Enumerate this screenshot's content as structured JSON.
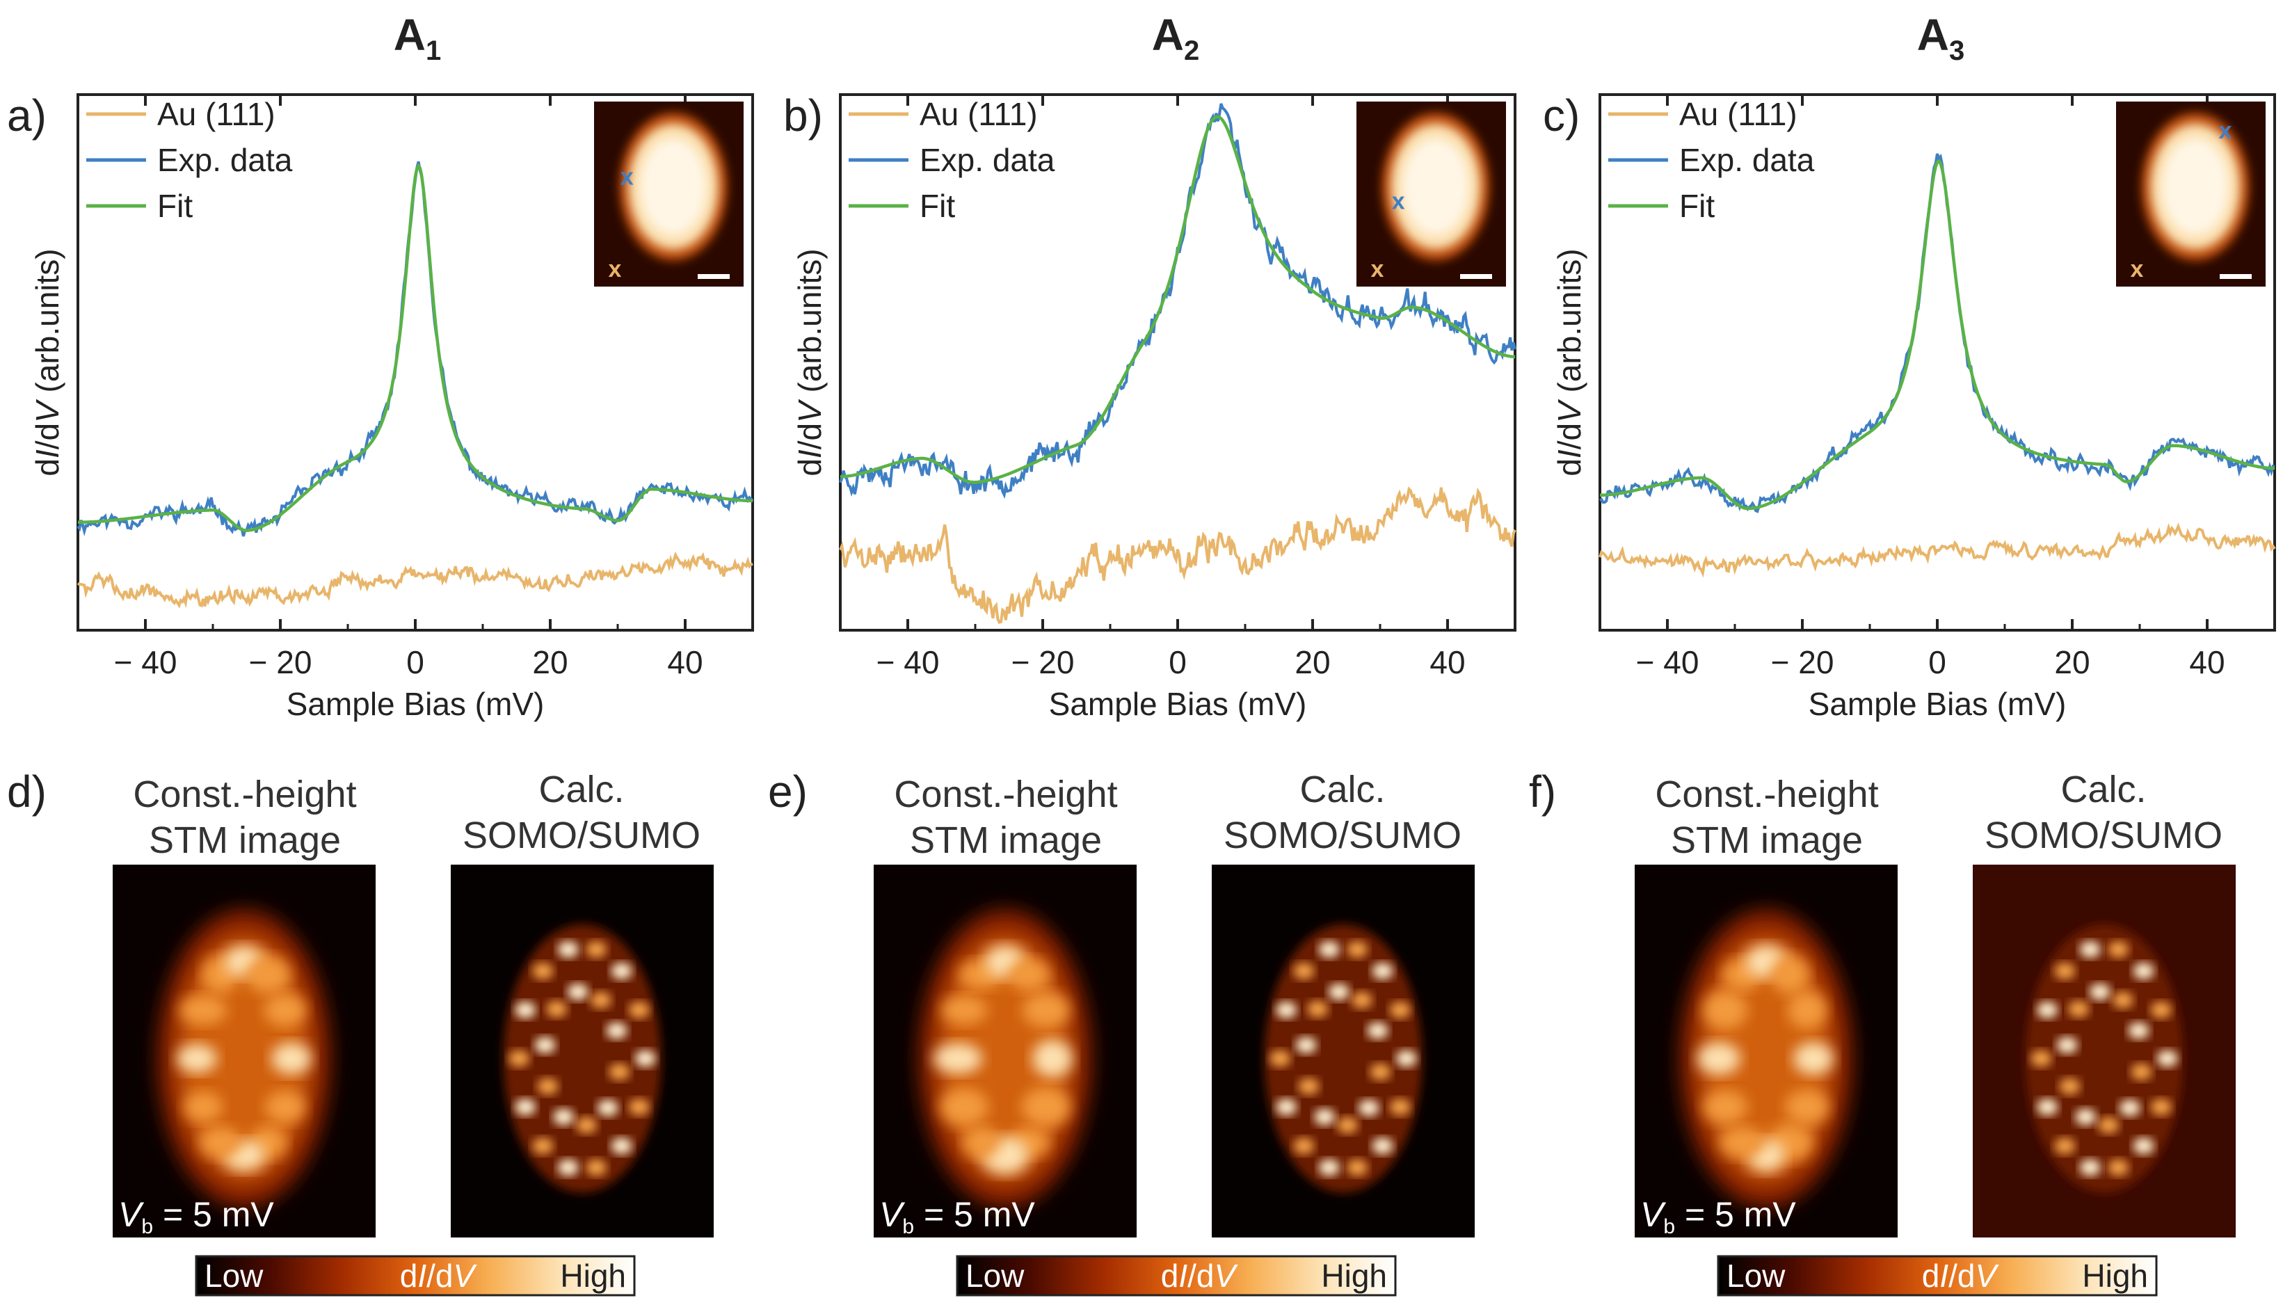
{
  "colors": {
    "au": "#e8b56a",
    "exp": "#3f7fc4",
    "fit": "#5ab246",
    "cmap": [
      "#000000",
      "#4a0a00",
      "#a32c00",
      "#e06410",
      "#f7ae52",
      "#fde3b6",
      "#ffffff"
    ]
  },
  "colorbar": {
    "low": "Low",
    "high": "High",
    "label": "dI/dV"
  },
  "chart_data": [
    {
      "type": "line",
      "panel": "a)",
      "title": "A1",
      "title_main": "A",
      "title_sub": "1",
      "xlabel": "Sample Bias (mV)",
      "ylabel": "dI/dV (arb.units)",
      "ylabel_parts": [
        "d",
        "I",
        "/d",
        "V",
        " (arb.units)"
      ],
      "xlim": [
        -50,
        50
      ],
      "ylim": [
        0,
        1
      ],
      "xticks": [
        -40,
        -20,
        0,
        20,
        40
      ],
      "xtick_labels": [
        "− 40",
        "− 20",
        "0",
        "20",
        "40"
      ],
      "legend": [
        "Au (111)",
        "Exp. data",
        "Fit"
      ],
      "series_params": {
        "fit": {
          "baseline": [
            [
              -50,
              0.2
            ],
            [
              -30,
              0.22
            ],
            [
              -25,
              0.18
            ],
            [
              -10,
              0.28
            ],
            [
              25,
              0.22
            ],
            [
              30,
              0.2
            ],
            [
              35,
              0.26
            ],
            [
              50,
              0.24
            ]
          ],
          "peak_center": 0.5,
          "peak_width": 2.6,
          "peak_height": 0.6,
          "noise": 0.0
        },
        "exp": {
          "noise": 0.012,
          "seed": 11
        },
        "au": {
          "base": [
            [
              -50,
              0.09
            ],
            [
              -30,
              0.06
            ],
            [
              -20,
              0.07
            ],
            [
              0,
              0.1
            ],
            [
              20,
              0.09
            ],
            [
              40,
              0.13
            ],
            [
              50,
              0.11
            ]
          ],
          "noise": 0.012,
          "seed": 5
        }
      },
      "inset": {
        "marker_exp": "x",
        "marker_au": "x"
      },
      "map_label_left": [
        "Const.-height",
        "STM image"
      ],
      "map_label_right": [
        "Calc.",
        "SOMO/SUMO"
      ],
      "map_panel": "d)",
      "vb_label": [
        "V",
        "b",
        " = 5 mV"
      ]
    },
    {
      "type": "line",
      "panel": "b)",
      "title": "A2",
      "title_main": "A",
      "title_sub": "2",
      "xlabel": "Sample Bias (mV)",
      "ylabel": "dI/dV (arb.units)",
      "ylabel_parts": [
        "d",
        "I",
        "/d",
        "V",
        " (arb.units)"
      ],
      "xlim": [
        -50,
        50
      ],
      "ylim": [
        0,
        1
      ],
      "xticks": [
        -40,
        -20,
        0,
        20,
        40
      ],
      "xtick_labels": [
        "− 40",
        "− 20",
        "0",
        "20",
        "40"
      ],
      "legend": [
        "Au (111)",
        "Exp. data",
        "Fit"
      ],
      "series_params": {
        "fit": {
          "baseline": [
            [
              -50,
              0.28
            ],
            [
              -38,
              0.31
            ],
            [
              -30,
              0.26
            ],
            [
              -15,
              0.3
            ],
            [
              -5,
              0.4
            ],
            [
              20,
              0.55
            ],
            [
              30,
              0.55
            ],
            [
              35,
              0.58
            ],
            [
              50,
              0.5
            ]
          ],
          "peak_center": 5.5,
          "peak_width": 6.5,
          "peak_height": 0.5,
          "noise": 0.0
        },
        "exp": {
          "noise": 0.02,
          "seed": 23
        },
        "au": {
          "base": [
            [
              -50,
              0.15
            ],
            [
              -35,
              0.14
            ],
            [
              -30,
              0.05
            ],
            [
              -20,
              0.06
            ],
            [
              -10,
              0.14
            ],
            [
              0,
              0.15
            ],
            [
              10,
              0.13
            ],
            [
              20,
              0.18
            ],
            [
              37,
              0.24
            ],
            [
              50,
              0.18
            ]
          ],
          "noise": 0.025,
          "seed": 7
        }
      },
      "inset": {
        "marker_exp": "x",
        "marker_au": "x"
      },
      "map_label_left": [
        "Const.-height",
        "STM image"
      ],
      "map_label_right": [
        "Calc.",
        "SOMO/SUMO"
      ],
      "map_panel": "e)",
      "vb_label": [
        "V",
        "b",
        " = 5 mV"
      ]
    },
    {
      "type": "line",
      "panel": "c)",
      "title": "A3",
      "title_main": "A",
      "title_sub": "3",
      "xlabel": "Sample Bias (mV)",
      "ylabel": "dI/dV (arb.units)",
      "ylabel_parts": [
        "d",
        "I",
        "/d",
        "V",
        " (arb.units)"
      ],
      "xlim": [
        -50,
        50
      ],
      "ylim": [
        0,
        1
      ],
      "xticks": [
        -40,
        -20,
        0,
        20,
        40
      ],
      "xtick_labels": [
        "− 40",
        "− 20",
        "0",
        "20",
        "40"
      ],
      "legend": [
        "Au (111)",
        "Exp. data",
        "Fit"
      ],
      "series_params": {
        "fit": {
          "baseline": [
            [
              -50,
              0.25
            ],
            [
              -35,
              0.28
            ],
            [
              -28,
              0.22
            ],
            [
              -10,
              0.32
            ],
            [
              25,
              0.3
            ],
            [
              28,
              0.27
            ],
            [
              35,
              0.34
            ],
            [
              50,
              0.3
            ]
          ],
          "peak_center": 0.2,
          "peak_width": 3.2,
          "peak_height": 0.56,
          "noise": 0.0
        },
        "exp": {
          "noise": 0.012,
          "seed": 31
        },
        "au": {
          "base": [
            [
              -50,
              0.14
            ],
            [
              -30,
              0.12
            ],
            [
              -20,
              0.13
            ],
            [
              0,
              0.15
            ],
            [
              20,
              0.15
            ],
            [
              35,
              0.18
            ],
            [
              50,
              0.16
            ]
          ],
          "noise": 0.01,
          "seed": 3
        }
      },
      "inset": {
        "marker_exp": "x",
        "marker_au": "x"
      },
      "map_label_left": [
        "Const.-height",
        "STM image"
      ],
      "map_label_right": [
        "Calc.",
        "SOMO/SUMO"
      ],
      "map_panel": "f)",
      "vb_label": [
        "V",
        "b",
        " = 5 mV"
      ]
    }
  ]
}
